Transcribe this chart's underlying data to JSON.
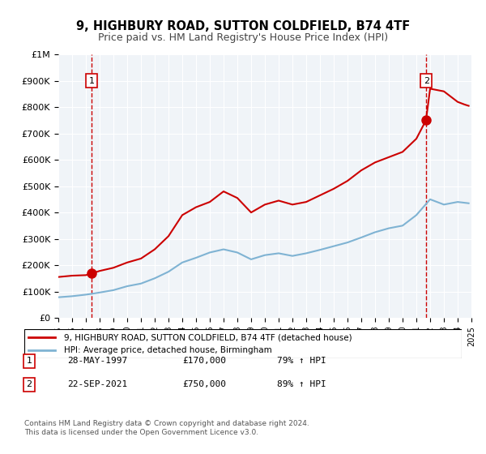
{
  "title": "9, HIGHBURY ROAD, SUTTON COLDFIELD, B74 4TF",
  "subtitle": "Price paid vs. HM Land Registry's House Price Index (HPI)",
  "legend_line1": "9, HIGHBURY ROAD, SUTTON COLDFIELD, B74 4TF (detached house)",
  "legend_line2": "HPI: Average price, detached house, Birmingham",
  "sale1_date": "28-MAY-1997",
  "sale1_price": 170000,
  "sale1_hpi": "79% ↑ HPI",
  "sale2_date": "22-SEP-2021",
  "sale2_price": 750000,
  "sale2_hpi": "89% ↑ HPI",
  "footnote": "Contains HM Land Registry data © Crown copyright and database right 2024.\nThis data is licensed under the Open Government Licence v3.0.",
  "sale1_x": 1997.41,
  "sale2_x": 2021.72,
  "line1_color": "#cc0000",
  "line2_color": "#7fb3d3",
  "vline_color": "#cc0000",
  "bg_color": "#f0f4f8",
  "grid_color": "#ffffff",
  "ylim": [
    0,
    1000000
  ],
  "xlim": [
    1995,
    2025
  ],
  "hpi_x": [
    1995,
    1996,
    1997,
    1997.4,
    1998,
    1999,
    2000,
    2001,
    2002,
    2003,
    2004,
    2005,
    2006,
    2007,
    2008,
    2009,
    2010,
    2011,
    2012,
    2013,
    2014,
    2015,
    2016,
    2017,
    2018,
    2019,
    2020,
    2021,
    2022,
    2023,
    2024,
    2024.8
  ],
  "hpi_y": [
    78000,
    82000,
    88000,
    91000,
    96000,
    105000,
    120000,
    130000,
    150000,
    175000,
    210000,
    228000,
    248000,
    260000,
    248000,
    222000,
    238000,
    245000,
    235000,
    245000,
    258000,
    272000,
    286000,
    305000,
    325000,
    340000,
    350000,
    390000,
    450000,
    430000,
    440000,
    435000
  ],
  "price_x": [
    1995,
    1996,
    1997,
    1997.4,
    1998,
    1999,
    2000,
    2001,
    2002,
    2003,
    2004,
    2005,
    2006,
    2007,
    2008,
    2009,
    2010,
    2011,
    2012,
    2013,
    2014,
    2015,
    2016,
    2017,
    2018,
    2019,
    2020,
    2021,
    2021.7,
    2022,
    2023,
    2023.5,
    2024,
    2024.5,
    2024.8
  ],
  "price_y": [
    155000,
    160000,
    162000,
    168000,
    178000,
    190000,
    210000,
    225000,
    260000,
    310000,
    390000,
    420000,
    440000,
    480000,
    455000,
    400000,
    430000,
    445000,
    430000,
    440000,
    465000,
    490000,
    520000,
    560000,
    590000,
    610000,
    630000,
    680000,
    750000,
    870000,
    860000,
    840000,
    820000,
    810000,
    805000
  ]
}
